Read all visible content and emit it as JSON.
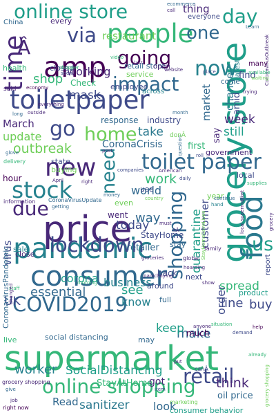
{
  "words": [
    {
      "text": "supermarket",
      "color": "#35b779"
    },
    {
      "text": "grocery store",
      "color": "#1f9e89"
    },
    {
      "text": "price",
      "color": "#482878"
    },
    {
      "text": "pandemic",
      "color": "#26828e"
    },
    {
      "text": "consumer",
      "color": "#31688e"
    },
    {
      "text": "toiletpaper",
      "color": "#3e4a89"
    },
    {
      "text": "people",
      "color": "#35b779"
    },
    {
      "text": "amp",
      "color": "#440154"
    },
    {
      "text": "food",
      "color": "#2a788e"
    },
    {
      "text": "COVID2019",
      "color": "#31688e"
    },
    {
      "text": "online store",
      "color": "#1f9e89"
    },
    {
      "text": "new",
      "color": "#482878"
    },
    {
      "text": "stock",
      "color": "#26828e"
    },
    {
      "text": "lockdown",
      "color": "#3e4a89"
    },
    {
      "text": "online shopping",
      "color": "#35b779"
    },
    {
      "text": "toilet paper",
      "color": "#31688e"
    },
    {
      "text": "retail",
      "color": "#3e4a89"
    },
    {
      "text": "now",
      "color": "#26828e"
    },
    {
      "text": "time",
      "color": "#482878"
    },
    {
      "text": "going",
      "color": "#440154"
    },
    {
      "text": "impact",
      "color": "#31688e"
    },
    {
      "text": "home",
      "color": "#6ece58"
    },
    {
      "text": "shopping",
      "color": "#31688e"
    },
    {
      "text": "day",
      "color": "#1f9e89"
    },
    {
      "text": "via",
      "color": "#3e4a89"
    },
    {
      "text": "us",
      "color": "#1f9e89"
    },
    {
      "text": "Â",
      "color": "#482878"
    },
    {
      "text": "need",
      "color": "#26828e"
    },
    {
      "text": "due",
      "color": "#482878"
    },
    {
      "text": "go",
      "color": "#3e4a89"
    },
    {
      "text": "one",
      "color": "#31688e"
    },
    {
      "text": "SocialDistancing",
      "color": "#1f9e89"
    },
    {
      "text": "outbreak",
      "color": "#6ece58"
    },
    {
      "text": "work",
      "color": "#35b779"
    },
    {
      "text": "essential",
      "color": "#31688e"
    },
    {
      "text": "worker",
      "color": "#26828e"
    },
    {
      "text": "sanitizer",
      "color": "#2a788e"
    },
    {
      "text": "think",
      "color": "#482878"
    },
    {
      "text": "buy",
      "color": "#3e4a89"
    },
    {
      "text": "make",
      "color": "#31688e"
    },
    {
      "text": "line",
      "color": "#3e4a89"
    },
    {
      "text": "see",
      "color": "#1f9e89"
    },
    {
      "text": "spread",
      "color": "#35b779"
    },
    {
      "text": "shop",
      "color": "#35b779"
    },
    {
      "text": "mask",
      "color": "#3e4a89"
    },
    {
      "text": "business",
      "color": "#26828e"
    },
    {
      "text": "corona",
      "color": "#1f9e89"
    },
    {
      "text": "today",
      "color": "#3e4a89"
    },
    {
      "text": "take",
      "color": "#2a788e"
    },
    {
      "text": "world",
      "color": "#31688e"
    },
    {
      "text": "quarantine",
      "color": "#1f9e89"
    },
    {
      "text": "customer",
      "color": "#3e4a89"
    },
    {
      "text": "still",
      "color": "#1f9e89"
    },
    {
      "text": "week",
      "color": "#482878"
    },
    {
      "text": "keep",
      "color": "#1f9e89"
    },
    {
      "text": "know",
      "color": "#26828e"
    },
    {
      "text": "order",
      "color": "#3e4a89"
    },
    {
      "text": "market",
      "color": "#31688e"
    },
    {
      "text": "change",
      "color": "#2a788e"
    },
    {
      "text": "way",
      "color": "#31688e"
    },
    {
      "text": "update",
      "color": "#6ece58"
    },
    {
      "text": "working",
      "color": "#482878"
    },
    {
      "text": "thing",
      "color": "#482878"
    },
    {
      "text": "CoronaCrisis",
      "color": "#31688e"
    },
    {
      "text": "March",
      "color": "#482878"
    },
    {
      "text": "virus",
      "color": "#3e4a89"
    },
    {
      "text": "restaurant",
      "color": "#6ece58"
    },
    {
      "text": "UK",
      "color": "#3e4a89"
    },
    {
      "text": "Read",
      "color": "#31688e"
    },
    {
      "text": "social distancing",
      "color": "#31688e"
    },
    {
      "text": "StayAtHome",
      "color": "#35b779"
    },
    {
      "text": "look",
      "color": "#31688e"
    },
    {
      "text": "got",
      "color": "#482878"
    },
    {
      "text": "oil price",
      "color": "#31688e"
    },
    {
      "text": "consumer behavior",
      "color": "#1f9e89"
    },
    {
      "text": "StayHome",
      "color": "#3e4a89"
    },
    {
      "text": "retailer",
      "color": "#31688e"
    },
    {
      "text": "industry",
      "color": "#3e4a89"
    },
    {
      "text": "response",
      "color": "#31688e"
    },
    {
      "text": "amid",
      "color": "#3e4a89"
    },
    {
      "text": "find",
      "color": "#3e4a89"
    },
    {
      "text": "first",
      "color": "#35b779"
    },
    {
      "text": "government",
      "color": "#482878"
    },
    {
      "text": "say",
      "color": "#482878"
    },
    {
      "text": "local",
      "color": "#3e4a89"
    },
    {
      "text": "CoronavirusPandemic",
      "color": "#31688e"
    },
    {
      "text": "Check",
      "color": "#35b779"
    },
    {
      "text": "closed",
      "color": "#3e4a89"
    },
    {
      "text": "retail store",
      "color": "#31688e"
    },
    {
      "text": "employee",
      "color": "#3e4a89"
    },
    {
      "text": "service",
      "color": "#6ece58"
    },
    {
      "text": "health",
      "color": "#35b779"
    },
    {
      "text": "state",
      "color": "#3e4a89"
    },
    {
      "text": "hour",
      "color": "#440154"
    },
    {
      "text": "buying",
      "color": "#6ece58"
    },
    {
      "text": "use",
      "color": "#3e4a89"
    },
    {
      "text": "year",
      "color": "#6ece58"
    },
    {
      "text": "went",
      "color": "#482878"
    },
    {
      "text": "even",
      "color": "#6ece58"
    },
    {
      "text": "stay",
      "color": "#31688e"
    },
    {
      "text": "sale",
      "color": "#26828e"
    },
    {
      "text": "close",
      "color": "#482878"
    },
    {
      "text": "next",
      "color": "#3e4a89"
    },
    {
      "text": "back",
      "color": "#3e4a89"
    },
    {
      "text": "around",
      "color": "#3e4a89"
    },
    {
      "text": "full",
      "color": "#31688e"
    },
    {
      "text": "much",
      "color": "#440154"
    },
    {
      "text": "may",
      "color": "#31688e"
    },
    {
      "text": "live",
      "color": "#35b779"
    },
    {
      "text": "product",
      "color": "#1f9e89"
    },
    {
      "text": "report",
      "color": "#3e4a89"
    },
    {
      "text": "every",
      "color": "#482878"
    },
    {
      "text": "China",
      "color": "#31688e"
    },
    {
      "text": "open",
      "color": "#482878"
    },
    {
      "text": "latest",
      "color": "#26828e"
    },
    {
      "text": "many",
      "color": "#440154"
    },
    {
      "text": "come",
      "color": "#31688e"
    },
    {
      "text": "everyone",
      "color": "#3e4a89"
    },
    {
      "text": "said",
      "color": "#482878"
    },
    {
      "text": "across",
      "color": "#26828e"
    },
    {
      "text": "donÂ",
      "color": "#6ece58"
    },
    {
      "text": "CoronaVirusUpdate",
      "color": "#31688e"
    },
    {
      "text": "information",
      "color": "#482878"
    },
    {
      "text": "delivery",
      "color": "#35b779"
    },
    {
      "text": "global",
      "color": "#482878"
    },
    {
      "text": "canÂ",
      "color": "#3e4a89"
    },
    {
      "text": "grocery shopping",
      "color": "#482878"
    },
    {
      "text": "right now",
      "color": "#440154"
    },
    {
      "text": "business",
      "color": "#440154"
    },
    {
      "text": "family",
      "color": "#482878"
    },
    {
      "text": "ecommerce",
      "color": "#31688e"
    },
    {
      "text": "call",
      "color": "#482878"
    },
    {
      "text": "shopper",
      "color": "#35b779"
    },
    {
      "text": "seen",
      "color": "#3e4a89"
    },
    {
      "text": "last",
      "color": "#482878"
    },
    {
      "text": "website",
      "color": "#482878"
    },
    {
      "text": "place",
      "color": "#3e4a89"
    },
    {
      "text": "economy",
      "color": "#440154"
    },
    {
      "text": "trying",
      "color": "#482878"
    },
    {
      "text": "Learn",
      "color": "#31688e"
    },
    {
      "text": "CoronavirusOutbreak",
      "color": "#482878"
    },
    {
      "text": "available",
      "color": "#35b779"
    },
    {
      "text": "waiting",
      "color": "#6ece58"
    },
    {
      "text": "long",
      "color": "#31688e"
    },
    {
      "text": "outside",
      "color": "#482878"
    },
    {
      "text": "everything",
      "color": "#482878"
    },
    {
      "text": "month",
      "color": "#31688e"
    },
    {
      "text": "glove",
      "color": "#31688e"
    },
    {
      "text": "post",
      "color": "#482878"
    },
    {
      "text": "roll",
      "color": "#3e4a89"
    },
    {
      "text": "April",
      "color": "#482878"
    },
    {
      "text": "right",
      "color": "#482878"
    },
    {
      "text": "companies",
      "color": "#3e4a89"
    },
    {
      "text": "American",
      "color": "#482878"
    },
    {
      "text": "daily",
      "color": "#3e4a89"
    },
    {
      "text": "money",
      "color": "#31688e"
    },
    {
      "text": "country",
      "color": "#6ece58"
    },
    {
      "text": "supplies",
      "color": "#35b779"
    },
    {
      "text": "continue",
      "color": "#31688e"
    },
    {
      "text": "hand",
      "color": "#26828e"
    },
    {
      "text": "getting",
      "color": "#31688e"
    },
    {
      "text": "must",
      "color": "#482878"
    },
    {
      "text": "local supermarket",
      "color": "#482878"
    },
    {
      "text": "grocery",
      "color": "#482878"
    },
    {
      "text": "itÂ",
      "color": "#482878"
    },
    {
      "text": "groceries",
      "color": "#482878"
    },
    {
      "text": "hoarding",
      "color": "#482878"
    },
    {
      "text": "panicbuying",
      "color": "#482878"
    },
    {
      "text": "morning",
      "color": "#35b779"
    },
    {
      "text": "show",
      "color": "#482878"
    },
    {
      "text": "staff",
      "color": "#35b779"
    },
    {
      "text": "changed",
      "color": "#482878"
    },
    {
      "text": "anyone",
      "color": "#482878"
    },
    {
      "text": "situation",
      "color": "#35b779"
    },
    {
      "text": "demand",
      "color": "#3e4a89"
    },
    {
      "text": "help",
      "color": "#440154"
    },
    {
      "text": "already",
      "color": "#35b779"
    },
    {
      "text": "give",
      "color": "#31688e"
    },
    {
      "text": "put",
      "color": "#482878"
    },
    {
      "text": "item",
      "color": "#3e4a89"
    },
    {
      "text": "businesses",
      "color": "#482878"
    },
    {
      "text": "job",
      "color": "#482878"
    },
    {
      "text": "grocery shopping",
      "color": "#6ece58"
    },
    {
      "text": "marketing",
      "color": "#6ece58"
    },
    {
      "text": "StayHomeSaveLives",
      "color": "#6ece58"
    },
    {
      "text": "question",
      "color": "#31688e"
    },
    {
      "text": "video",
      "color": "#35b779"
    }
  ]
}
